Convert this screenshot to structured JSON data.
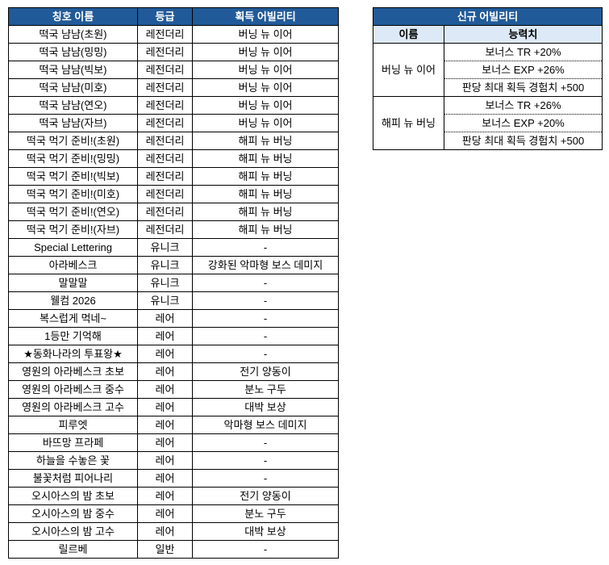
{
  "titles_table": {
    "headers": [
      "칭호 이름",
      "등급",
      "획득 어빌리티"
    ],
    "rows": [
      [
        "떡국 냠냠(초원)",
        "레전더리",
        "버닝 뉴 이어"
      ],
      [
        "떡국 냠냠(밍밍)",
        "레전더리",
        "버닝 뉴 이어"
      ],
      [
        "떡국 냠냠(빅보)",
        "레전더리",
        "버닝 뉴 이어"
      ],
      [
        "떡국 냠냠(미호)",
        "레전더리",
        "버닝 뉴 이어"
      ],
      [
        "떡국 냠냠(연오)",
        "레전더리",
        "버닝 뉴 이어"
      ],
      [
        "떡국 냠냠(자브)",
        "레전더리",
        "버닝 뉴 이어"
      ],
      [
        "떡국 먹기 준비!(초원)",
        "레전더리",
        "해피 뉴 버닝"
      ],
      [
        "떡국 먹기 준비!(밍밍)",
        "레전더리",
        "해피 뉴 버닝"
      ],
      [
        "떡국 먹기 준비!(빅보)",
        "레전더리",
        "해피 뉴 버닝"
      ],
      [
        "떡국 먹기 준비!(미호)",
        "레전더리",
        "해피 뉴 버닝"
      ],
      [
        "떡국 먹기 준비!(연오)",
        "레전더리",
        "해피 뉴 버닝"
      ],
      [
        "떡국 먹기 준비!(자브)",
        "레전더리",
        "해피 뉴 버닝"
      ],
      [
        "Special Lettering",
        "유니크",
        "-"
      ],
      [
        "아라베스크",
        "유니크",
        "강화된 악마형 보스 데미지"
      ],
      [
        "말말말",
        "유니크",
        "-"
      ],
      [
        "웰컴 2026",
        "유니크",
        "-"
      ],
      [
        "복스럽게 먹네~",
        "레어",
        "-"
      ],
      [
        "1등만 기억해",
        "레어",
        "-"
      ],
      [
        "★동화나라의 투표왕★",
        "레어",
        "-"
      ],
      [
        "영원의 아라베스크 초보",
        "레어",
        "전기 양동이"
      ],
      [
        "영원의 아라베스크 중수",
        "레어",
        "분노 구두"
      ],
      [
        "영원의 아라베스크 고수",
        "레어",
        "대박 보상"
      ],
      [
        "피루엣",
        "레어",
        "악마형 보스 데미지"
      ],
      [
        "바뜨망 프라페",
        "레어",
        "-"
      ],
      [
        "하늘을 수놓은 꽃",
        "레어",
        "-"
      ],
      [
        "불꽃처럼 피어나리",
        "레어",
        "-"
      ],
      [
        "오시아스의 밤 초보",
        "레어",
        "전기 양동이"
      ],
      [
        "오시아스의 밤 중수",
        "레어",
        "분노 구두"
      ],
      [
        "오시아스의 밤 고수",
        "레어",
        "대박 보상"
      ],
      [
        "릴르베",
        "일반",
        "-"
      ]
    ]
  },
  "abilities_table": {
    "title": "신규 어빌리티",
    "headers": [
      "이름",
      "능력치"
    ],
    "groups": [
      {
        "name": "버닝 뉴 이어",
        "stats": [
          "보너스 TR +20%",
          "보너스 EXP +26%",
          "판당 최대 획득 경험치 +500"
        ]
      },
      {
        "name": "해피 뉴 버닝",
        "stats": [
          "보너스 TR +26%",
          "보너스 EXP +20%",
          "판당 최대 획득 경험치 +500"
        ]
      }
    ]
  },
  "colors": {
    "header_bg": "#215a98",
    "subheader_bg": "#dde9f6"
  }
}
